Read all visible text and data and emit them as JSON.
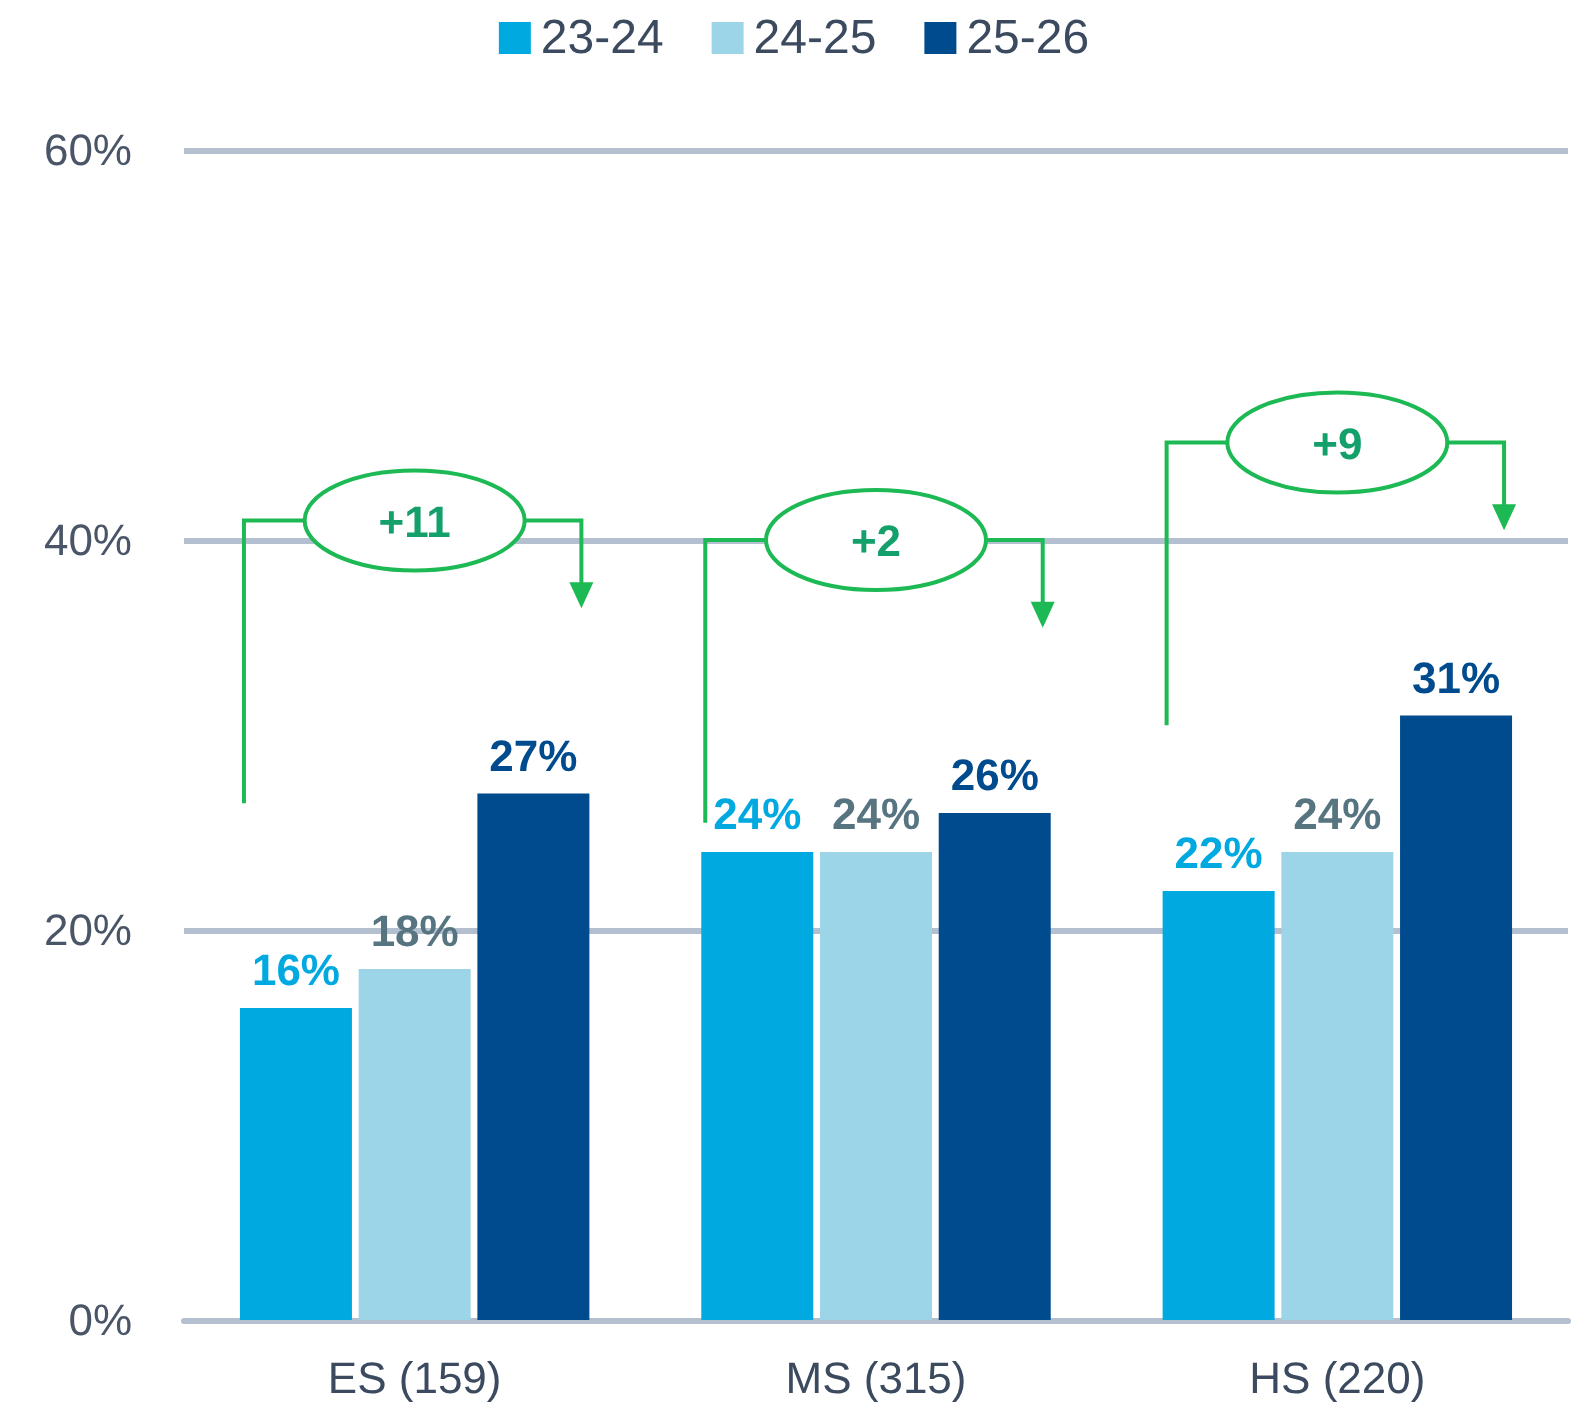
{
  "chart_data": {
    "type": "bar",
    "categories": [
      "ES (159)",
      "MS (315)",
      "HS (220)"
    ],
    "series": [
      {
        "name": "23-24",
        "color": "#00a9e0",
        "values": [
          16,
          24,
          22
        ],
        "value_labels": [
          "16%",
          "24%",
          "22%"
        ]
      },
      {
        "name": "24-25",
        "color": "#9dd5e8",
        "values": [
          18,
          24,
          24
        ],
        "value_labels": [
          "18%",
          "24%",
          "24%"
        ]
      },
      {
        "name": "25-26",
        "color": "#004b8d",
        "values": [
          27,
          26,
          31
        ],
        "value_labels": [
          "27%",
          "26%",
          "31%"
        ]
      }
    ],
    "ylim": [
      0,
      60
    ],
    "yticks": [
      {
        "value": 0,
        "label": "0%"
      },
      {
        "value": 20,
        "label": "20%"
      },
      {
        "value": 40,
        "label": "40%"
      },
      {
        "value": 60,
        "label": "60%"
      }
    ],
    "grid": "y",
    "legend": "top",
    "annotations": [
      "+11",
      "+2",
      "+9"
    ]
  }
}
